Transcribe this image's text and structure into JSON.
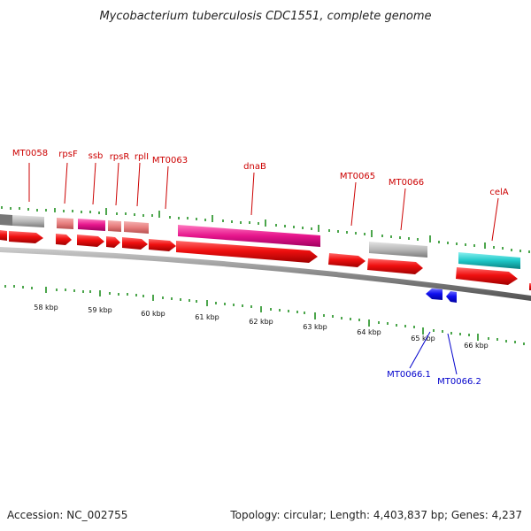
{
  "header": {
    "title": "Mycobacterium tuberculosis CDC1551, complete genome"
  },
  "footer": {
    "accession": "Accession: NC_002755",
    "topology": "Topology: circular; Length: 4,403,837 bp; Genes: 4,237"
  },
  "colors": {
    "cds_forward": "#e60000",
    "cds_reverse": "#0000e6",
    "rna_pink": "#e87f7f",
    "gene_magenta": "#e6158c",
    "gene_gray": "#b8b8b8",
    "gene_cyan": "#1ec8c8",
    "label_red": "#cc0000",
    "label_blue": "#0000cc",
    "tick_green": "#008000"
  },
  "gene_labels": [
    {
      "id": "MT0058",
      "text": "MT0058"
    },
    {
      "id": "rpsF",
      "text": "rpsF"
    },
    {
      "id": "ssb",
      "text": "ssb"
    },
    {
      "id": "rpsR",
      "text": "rpsR"
    },
    {
      "id": "rplI",
      "text": "rplI"
    },
    {
      "id": "MT0063",
      "text": "MT0063"
    },
    {
      "id": "dnaB",
      "text": "dnaB"
    },
    {
      "id": "MT0065",
      "text": "MT0065"
    },
    {
      "id": "MT0066",
      "text": "MT0066"
    },
    {
      "id": "celA",
      "text": "celA"
    },
    {
      "id": "MT0066.1",
      "text": "MT0066.1"
    },
    {
      "id": "MT0066.2",
      "text": "MT0066.2"
    }
  ],
  "kbp_labels": [
    "58 kbp",
    "59 kbp",
    "60 kbp",
    "61 kbp",
    "62 kbp",
    "63 kbp",
    "64 kbp",
    "65 kbp",
    "66 kbp"
  ]
}
